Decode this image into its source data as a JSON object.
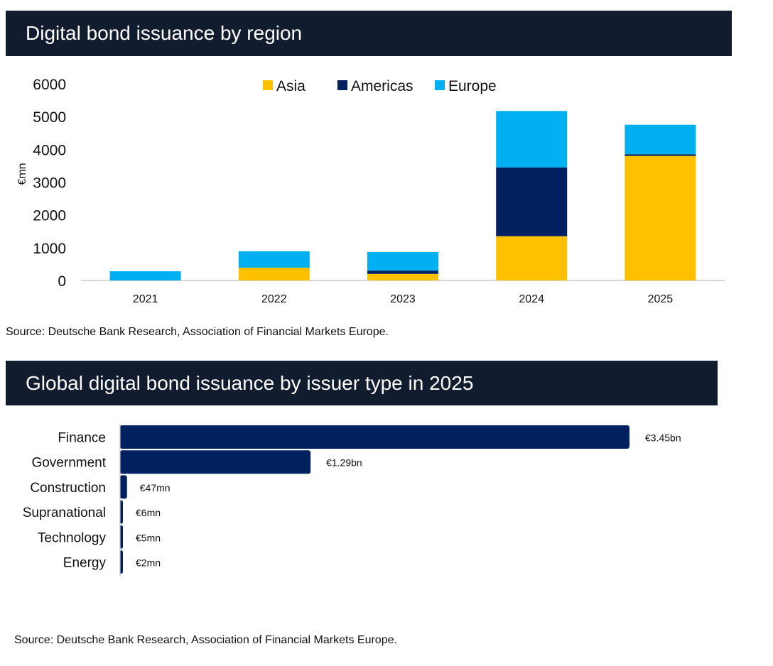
{
  "colors": {
    "asia": "#ffc000",
    "americas": "#002060",
    "europe": "#00b0f0",
    "bar": "#002060",
    "banner": "#111c2e"
  },
  "chart_data": [
    {
      "type": "bar",
      "stacked": true,
      "title": "Digital bond issuance by region",
      "ylabel": "€mn",
      "xlabel": "",
      "ylim": [
        0,
        6000
      ],
      "yticks": [
        0,
        1000,
        2000,
        3000,
        4000,
        5000,
        6000
      ],
      "legend": "top-center",
      "grid": false,
      "categories": [
        "2021",
        "2022",
        "2023",
        "2024",
        "2025"
      ],
      "series": [
        {
          "name": "Asia",
          "values": [
            0,
            390,
            200,
            1350,
            3800
          ]
        },
        {
          "name": "Americas",
          "values": [
            0,
            0,
            100,
            2100,
            50
          ]
        },
        {
          "name": "Europe",
          "values": [
            280,
            500,
            570,
            1720,
            900
          ]
        }
      ],
      "source": "Source: Deutsche Bank Research, Association of Financial Markets Europe."
    },
    {
      "type": "bar",
      "orientation": "horizontal",
      "title": "Global digital bond issuance by issuer type in 2025",
      "categories": [
        "Finance",
        "Government",
        "Construction",
        "Supranational",
        "Technology",
        "Energy"
      ],
      "values": [
        3450,
        1290,
        47,
        6,
        5,
        2
      ],
      "units": "€mn",
      "labels": [
        "€3.45bn",
        "€1.29bn",
        "€47mn",
        "€6mn",
        "€5mn",
        "€2mn"
      ],
      "source": "Source: Deutsche Bank Research, Association of Financial Markets Europe."
    }
  ]
}
